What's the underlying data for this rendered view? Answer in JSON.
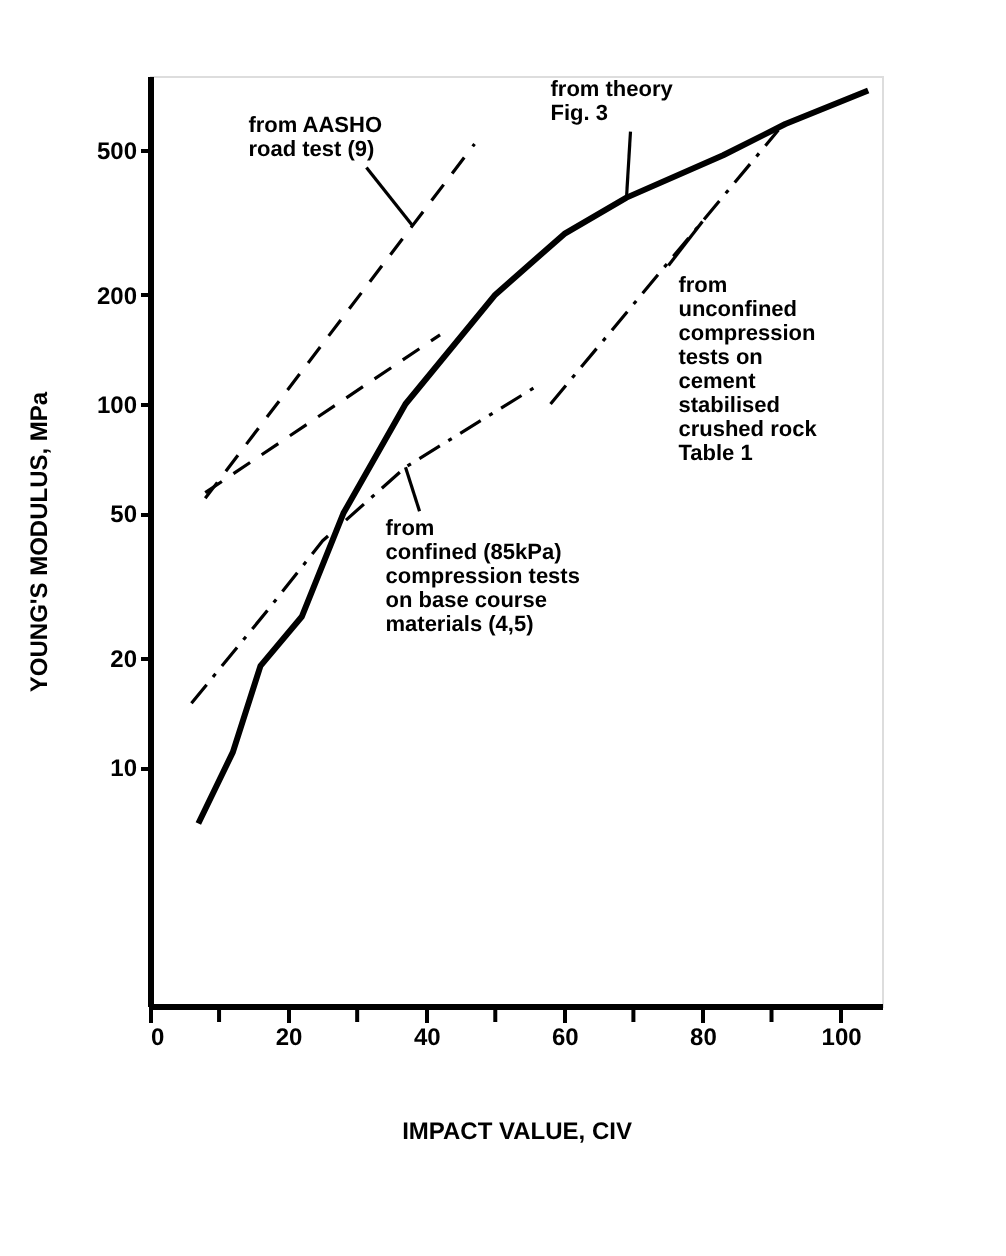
{
  "chart_data": {
    "type": "line",
    "xlabel": "IMPACT VALUE, CIV",
    "ylabel": "YOUNG'S MODULUS,    MPa",
    "log": "y",
    "grid": false,
    "marker": "none",
    "xlim": [
      0,
      106
    ],
    "ylim": [
      2.2,
      800
    ],
    "xticks": [
      0,
      {
        "value": 10,
        "label": null
      },
      20,
      {
        "value": 30,
        "label": null
      },
      40,
      {
        "value": 50,
        "label": null
      },
      60,
      {
        "value": 70,
        "label": null
      },
      80,
      {
        "value": 90,
        "label": null
      },
      100
    ],
    "yticks": [
      10,
      20,
      50,
      100,
      200,
      500
    ],
    "series": [
      {
        "color": "#000000",
        "line_style": "solid",
        "x": [
          7,
          12,
          16,
          22,
          28,
          37,
          50,
          60,
          69,
          83,
          92,
          104
        ],
        "values": [
          7,
          11,
          19,
          26,
          50,
          100,
          200,
          294,
          370,
          484,
          590,
          730
        ]
      },
      {
        "color": "#000000",
        "line_style": "dashed",
        "x": [
          8,
          47
        ],
        "values": [
          55,
          520
        ]
      },
      {
        "color": "#000000",
        "line_style": "dashed",
        "x": [
          8,
          42
        ],
        "values": [
          57,
          155
        ]
      },
      {
        "color": "#000000",
        "line_style": "dashdot",
        "x": [
          6,
          17,
          25,
          37,
          56
        ],
        "values": [
          15,
          27,
          42,
          67,
          112
        ]
      },
      {
        "color": "#000000",
        "line_style": "dashdot",
        "x": [
          58,
          91
        ],
        "values": [
          100,
          568
        ]
      }
    ],
    "annotations": [
      {
        "text": "from AASHO\nroad test (9)",
        "x": 38,
        "y": 310
      },
      {
        "text": "from theory\nFig. 3",
        "x": 69,
        "y": 370
      },
      {
        "text": "from\nunconfined\ncompression\ntests on\ncement\nstabilised\ncrushed rock\nTable 1",
        "x": 80,
        "y": 318
      },
      {
        "text": "from\nconfined (85kPa)\ncompression tests\non base course\nmaterials (4,5)",
        "x": 37,
        "y": 67
      }
    ]
  }
}
